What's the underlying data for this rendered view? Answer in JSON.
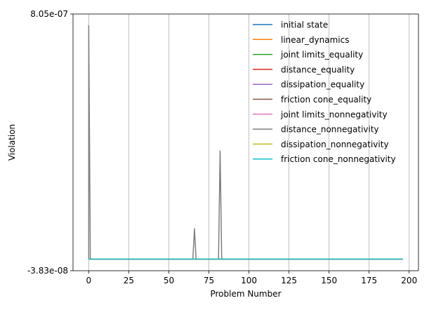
{
  "chart_data": {
    "type": "line",
    "title": "",
    "xlabel": "Problem Number",
    "ylabel": "Violation",
    "xlim": [
      -9.8,
      205.8
    ],
    "ylim": [
      -3.83e-08,
      8.05e-07
    ],
    "xticks": [
      0,
      25,
      50,
      75,
      100,
      125,
      150,
      175,
      200
    ],
    "xtick_labels": [
      "0",
      "25",
      "50",
      "75",
      "100",
      "125",
      "150",
      "175",
      "200"
    ],
    "yticks": [
      -3.83e-08,
      8.05e-07
    ],
    "ytick_labels": [
      "-3.83e-08",
      "8.05e-07"
    ],
    "grid": "x-axis only",
    "legend_position": "top-right, no frame",
    "x_range": [
      0,
      196
    ],
    "series": [
      {
        "name": "initial state",
        "color": "#1f77b4",
        "points": [
          [
            0,
            0
          ],
          [
            196,
            0
          ]
        ]
      },
      {
        "name": "linear_dynamics",
        "color": "#ff7f0e",
        "points": [
          [
            0,
            0
          ],
          [
            196,
            0
          ]
        ]
      },
      {
        "name": "joint limits_equality",
        "color": "#2ca02c",
        "points": [
          [
            0,
            0
          ],
          [
            196,
            0
          ]
        ]
      },
      {
        "name": "distance_equality",
        "color": "#d62728",
        "points": [
          [
            0,
            0
          ],
          [
            196,
            0
          ]
        ]
      },
      {
        "name": "dissipation_equality",
        "color": "#9467bd",
        "points": [
          [
            0,
            0
          ],
          [
            196,
            0
          ]
        ]
      },
      {
        "name": "friction cone_equality",
        "color": "#8c564b",
        "points": [
          [
            0,
            0
          ],
          [
            196,
            0
          ]
        ]
      },
      {
        "name": "joint limits_nonnegativity",
        "color": "#e377c2",
        "points": [
          [
            0,
            0
          ],
          [
            196,
            0
          ]
        ]
      },
      {
        "name": "distance_nonnegativity",
        "color": "#7f7f7f",
        "points": [
          [
            0,
            0
          ],
          [
            0,
            7.67e-07
          ],
          [
            1,
            0
          ],
          [
            65,
            0
          ],
          [
            66,
            1e-07
          ],
          [
            67,
            0
          ],
          [
            81,
            0
          ],
          [
            82,
            3.55e-07
          ],
          [
            83,
            0
          ],
          [
            196,
            0
          ]
        ]
      },
      {
        "name": "dissipation_nonnegativity",
        "color": "#bcbd22",
        "points": [
          [
            0,
            0
          ],
          [
            196,
            0
          ]
        ]
      },
      {
        "name": "friction cone_nonnegativity",
        "color": "#17becf",
        "points": [
          [
            0,
            0
          ],
          [
            196,
            0
          ]
        ]
      }
    ]
  }
}
